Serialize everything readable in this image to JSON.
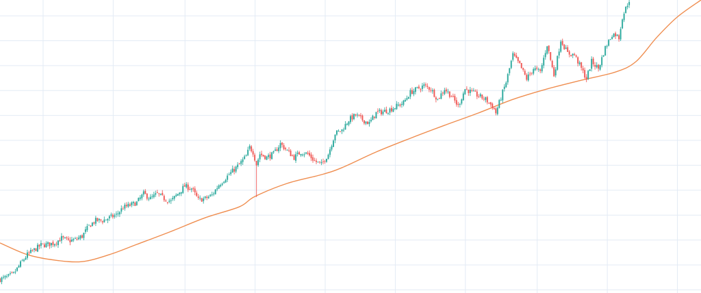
{
  "chart_data": {
    "type": "candlestick",
    "title": "",
    "xlabel": "",
    "ylabel": "",
    "grid": true,
    "legend": "none",
    "xlim": [
      0,
      410
    ],
    "ylim": [
      0,
      117.6
    ],
    "colors": {
      "up": "#26a69a",
      "down": "#ef5350",
      "moving_average": "#ef8d4f",
      "grid": "#e3ebf5",
      "background": "#ffffff"
    },
    "close_path": [
      [
        0,
        5.5
      ],
      [
        4,
        6.3
      ],
      [
        8,
        7.7
      ],
      [
        12,
        11.8
      ],
      [
        16,
        15.4
      ],
      [
        20,
        17.3
      ],
      [
        24,
        19.2
      ],
      [
        28,
        19.5
      ],
      [
        32,
        20.1
      ],
      [
        36,
        22.0
      ],
      [
        40,
        20.9
      ],
      [
        44,
        21.4
      ],
      [
        48,
        22.8
      ],
      [
        52,
        26.9
      ],
      [
        56,
        29.1
      ],
      [
        60,
        29.1
      ],
      [
        64,
        30.2
      ],
      [
        68,
        31.3
      ],
      [
        72,
        34.3
      ],
      [
        76,
        35.2
      ],
      [
        80,
        36.3
      ],
      [
        84,
        39.8
      ],
      [
        88,
        37.9
      ],
      [
        92,
        39.8
      ],
      [
        96,
        37.9
      ],
      [
        100,
        36.8
      ],
      [
        104,
        39.8
      ],
      [
        108,
        42.9
      ],
      [
        112,
        42.0
      ],
      [
        116,
        37.4
      ],
      [
        120,
        37.9
      ],
      [
        124,
        39.3
      ],
      [
        128,
        43.4
      ],
      [
        132,
        46.2
      ],
      [
        136,
        48.9
      ],
      [
        140,
        51.6
      ],
      [
        144,
        54.9
      ],
      [
        146,
        58.5
      ],
      [
        148,
        56.6
      ],
      [
        150,
        51.6
      ],
      [
        152,
        55.8
      ],
      [
        156,
        54.4
      ],
      [
        160,
        55.8
      ],
      [
        164,
        59.9
      ],
      [
        168,
        57.1
      ],
      [
        172,
        54.4
      ],
      [
        176,
        56.6
      ],
      [
        180,
        55.8
      ],
      [
        184,
        53.0
      ],
      [
        188,
        51.6
      ],
      [
        192,
        55.8
      ],
      [
        196,
        64.0
      ],
      [
        200,
        65.4
      ],
      [
        204,
        69.5
      ],
      [
        208,
        71.4
      ],
      [
        212,
        69.5
      ],
      [
        216,
        68.1
      ],
      [
        220,
        72.3
      ],
      [
        224,
        72.8
      ],
      [
        228,
        73.6
      ],
      [
        232,
        75.0
      ],
      [
        236,
        76.4
      ],
      [
        240,
        80.5
      ],
      [
        244,
        81.9
      ],
      [
        248,
        83.2
      ],
      [
        252,
        81.9
      ],
      [
        256,
        77.7
      ],
      [
        260,
        81.9
      ],
      [
        264,
        79.1
      ],
      [
        268,
        75.0
      ],
      [
        272,
        81.9
      ],
      [
        276,
        80.5
      ],
      [
        280,
        79.1
      ],
      [
        284,
        77.7
      ],
      [
        288,
        75.0
      ],
      [
        290,
        72.3
      ],
      [
        292,
        76.4
      ],
      [
        296,
        84.6
      ],
      [
        300,
        95.6
      ],
      [
        304,
        91.5
      ],
      [
        308,
        86.0
      ],
      [
        312,
        90.1
      ],
      [
        316,
        88.7
      ],
      [
        320,
        99.7
      ],
      [
        324,
        87.4
      ],
      [
        326,
        94.2
      ],
      [
        328,
        101.6
      ],
      [
        332,
        96.2
      ],
      [
        336,
        95.6
      ],
      [
        340,
        90.1
      ],
      [
        343,
        86.0
      ],
      [
        346,
        92.9
      ],
      [
        350,
        90.1
      ],
      [
        354,
        98.4
      ],
      [
        358,
        103.8
      ],
      [
        360,
        103.8
      ],
      [
        362,
        102.5
      ],
      [
        364,
        110.7
      ],
      [
        366,
        114.3
      ],
      [
        368,
        117.6
      ]
    ],
    "notable_wicks": [
      {
        "bar": 150,
        "low": 38.5
      }
    ],
    "moving_average": [
      [
        0,
        20.1
      ],
      [
        16,
        15.4
      ],
      [
        32,
        13.2
      ],
      [
        48,
        12.6
      ],
      [
        64,
        15.4
      ],
      [
        80,
        19.5
      ],
      [
        100,
        24.7
      ],
      [
        120,
        30.2
      ],
      [
        140,
        34.6
      ],
      [
        149,
        38.7
      ],
      [
        168,
        44.0
      ],
      [
        188,
        47.5
      ],
      [
        200,
        50.3
      ],
      [
        220,
        56.6
      ],
      [
        240,
        62.1
      ],
      [
        260,
        67.3
      ],
      [
        280,
        72.3
      ],
      [
        300,
        77.7
      ],
      [
        320,
        81.9
      ],
      [
        340,
        85.4
      ],
      [
        360,
        88.7
      ],
      [
        372,
        92.9
      ],
      [
        384,
        102.5
      ],
      [
        396,
        110.7
      ],
      [
        410,
        117.6
      ]
    ],
    "grid_x": [
      25,
      66,
      108,
      149,
      190,
      231,
      272,
      314,
      355,
      396
    ],
    "grid_y": [
      1.4,
      11.4,
      21.4,
      31.4,
      41.4,
      51.4,
      61.4,
      71.4,
      81.4,
      91.4,
      101.4,
      111.4
    ]
  }
}
